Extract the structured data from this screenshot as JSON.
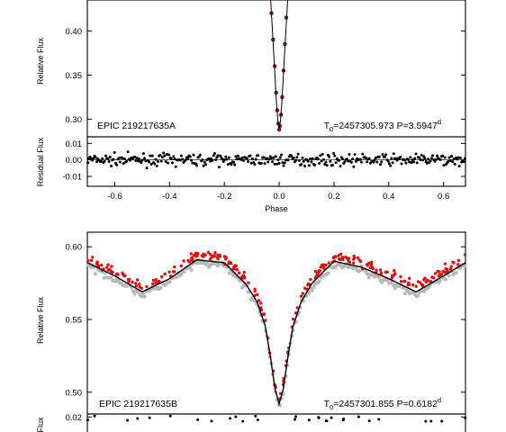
{
  "chart_data": [
    {
      "id": "top",
      "type": "scatter",
      "ylabel": "Relative Flux",
      "ylim": [
        0.28,
        0.435
      ],
      "xlim": [
        -0.7,
        0.68
      ],
      "yticks": [
        {
          "v": 0.3,
          "label": "0.30"
        },
        {
          "v": 0.35,
          "label": "0.35"
        },
        {
          "v": 0.4,
          "label": "0.40"
        }
      ],
      "label_left": "EPIC 219217635A",
      "label_right_parts": [
        "T",
        "0",
        "=2457305.973 P=3.5947",
        "d"
      ],
      "series": [
        {
          "role": "data",
          "color": "#b01818",
          "points": [
            [
              -0.028,
              0.42
            ],
            [
              -0.022,
              0.39
            ],
            [
              -0.016,
              0.36
            ],
            [
              -0.011,
              0.33
            ],
            [
              -0.007,
              0.31
            ],
            [
              -0.003,
              0.295
            ],
            [
              0.0,
              0.288
            ],
            [
              0.003,
              0.292
            ],
            [
              0.007,
              0.305
            ],
            [
              0.011,
              0.325
            ],
            [
              0.016,
              0.355
            ],
            [
              0.021,
              0.385
            ],
            [
              0.026,
              0.415
            ]
          ]
        },
        {
          "role": "model",
          "color": "#000000",
          "points": [
            [
              -0.031,
              0.435
            ],
            [
              -0.02,
              0.375
            ],
            [
              -0.01,
              0.32
            ],
            [
              -0.004,
              0.296
            ],
            [
              0.0,
              0.289
            ],
            [
              0.004,
              0.296
            ],
            [
              0.01,
              0.32
            ],
            [
              0.02,
              0.375
            ],
            [
              0.031,
              0.435
            ]
          ]
        }
      ]
    },
    {
      "id": "top-residual",
      "type": "scatter",
      "ylabel": "Residual Flux",
      "ylim": [
        -0.016,
        0.014
      ],
      "xlim": [
        -0.7,
        0.68
      ],
      "yticks": [
        {
          "v": -0.01,
          "label": "-0.01"
        },
        {
          "v": 0.0,
          "label": "0.00"
        },
        {
          "v": 0.01,
          "label": "0.01"
        }
      ],
      "xticks": [
        {
          "v": -0.6,
          "label": "-0.6"
        },
        {
          "v": -0.4,
          "label": "-0.4"
        },
        {
          "v": -0.2,
          "label": "-0.2"
        },
        {
          "v": 0.0,
          "label": "0.0"
        },
        {
          "v": 0.2,
          "label": "0.2"
        },
        {
          "v": 0.4,
          "label": "0.4"
        },
        {
          "v": 0.6,
          "label": "0.6"
        }
      ],
      "xlabel": "Phase",
      "residual_scatter": 0.0032,
      "series": [
        {
          "role": "residual",
          "color": "#000000"
        }
      ]
    },
    {
      "id": "bottom",
      "type": "scatter",
      "ylabel": "Relative Flux",
      "ylim": [
        0.485,
        0.61
      ],
      "xlim": [
        -0.7,
        0.68
      ],
      "yticks": [
        {
          "v": 0.5,
          "label": "0.50"
        },
        {
          "v": 0.55,
          "label": "0.55"
        },
        {
          "v": 0.6,
          "label": "0.60"
        }
      ],
      "label_left": "EPIC 219217635B",
      "label_right_parts": [
        "T",
        "0",
        "=2457301.855 P=0.6182",
        "d"
      ],
      "series": [
        {
          "role": "model",
          "name": "",
          "color": "#000000",
          "points": [
            [
              -0.7,
              0.589
            ],
            [
              -0.6,
              0.58
            ],
            [
              -0.5,
              0.569
            ],
            [
              -0.4,
              0.578
            ],
            [
              -0.3,
              0.591
            ],
            [
              -0.2,
              0.589
            ],
            [
              -0.12,
              0.574
            ],
            [
              -0.08,
              0.562
            ],
            [
              -0.05,
              0.545
            ],
            [
              -0.03,
              0.522
            ],
            [
              -0.015,
              0.502
            ],
            [
              0.0,
              0.492
            ],
            [
              0.015,
              0.502
            ],
            [
              0.03,
              0.522
            ],
            [
              0.05,
              0.545
            ],
            [
              0.08,
              0.562
            ],
            [
              0.12,
              0.575
            ],
            [
              0.2,
              0.59
            ],
            [
              0.3,
              0.586
            ],
            [
              0.4,
              0.578
            ],
            [
              0.5,
              0.569
            ],
            [
              0.6,
              0.58
            ],
            [
              0.68,
              0.589
            ]
          ]
        }
      ],
      "data_band_red_offset": 0.0035,
      "data_band_gray_offset": -0.002
    },
    {
      "id": "bottom-residual",
      "type": "scatter",
      "ylabel": "Flux",
      "ylim": [
        -0.02,
        0.025
      ],
      "xlim": [
        -0.7,
        0.68
      ],
      "yticks": [
        {
          "v": 0.02,
          "label": "0.02"
        }
      ],
      "series": [
        {
          "role": "residual",
          "color": "#000000"
        }
      ]
    }
  ]
}
